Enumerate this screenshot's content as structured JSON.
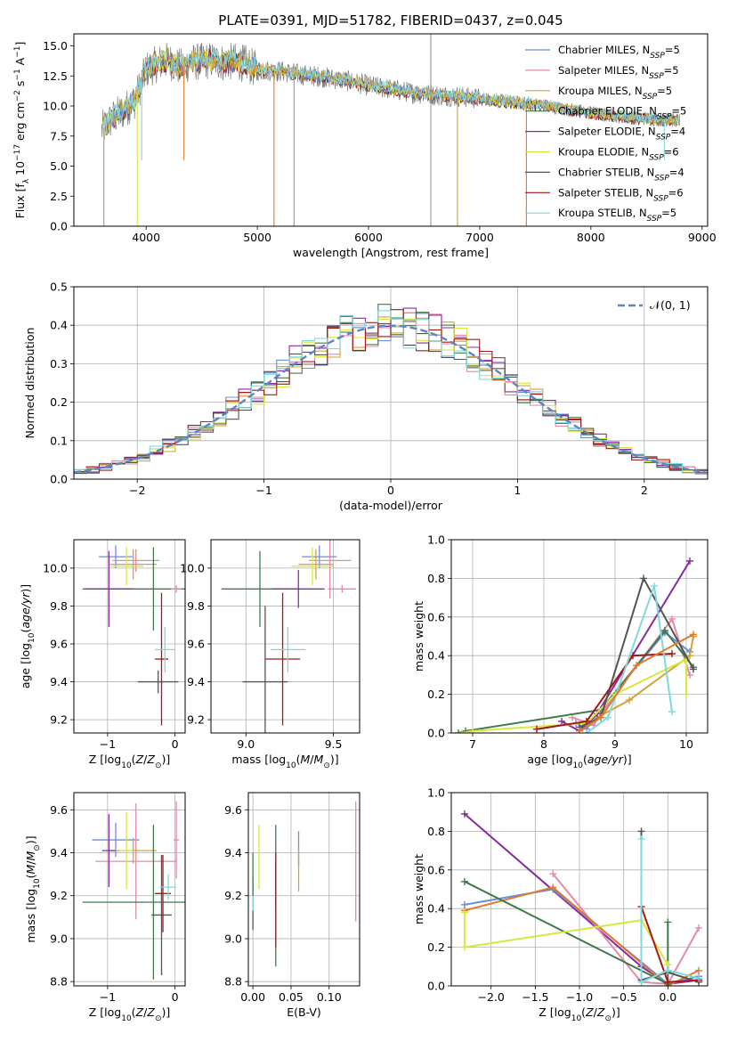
{
  "figure": {
    "title": "PLATE=0391, MJD=51782, FIBERID=0437, z=0.045"
  },
  "colors": {
    "chabrier_miles": "#6d8ddb",
    "salpeter_miles": "#e48aa8",
    "kroupa_miles": "#d8a232",
    "chabrier_elodie": "#3f7a4b",
    "salpeter_elodie": "#8a2ba0",
    "kroupa_elodie": "#d7e83a",
    "chabrier_stelib": "#555555",
    "salpeter_stelib": "#a51818",
    "kroupa_stelib": "#7ed9de",
    "normal_curve": "#5b86c6",
    "orange_extra": "#e07a2c",
    "grid": "#b0b0b0"
  },
  "chart_data": [
    {
      "id": "spectrum",
      "type": "line",
      "title": "PLATE=0391, MJD=51782, FIBERID=0437, z=0.045",
      "xlabel": "wavelength [Angstrom, rest frame]",
      "ylabel": "Flux [f_λ 10^-17 erg cm^-2 s^-1 A^-1]",
      "xlim": [
        3350,
        9050
      ],
      "ylim": [
        0,
        16
      ],
      "xticks": [
        4000,
        5000,
        6000,
        7000,
        8000,
        9000
      ],
      "yticks": [
        0.0,
        2.5,
        5.0,
        7.5,
        10.0,
        12.5,
        15.0
      ],
      "grid": false,
      "legend_position": "upper-right",
      "legend": [
        {
          "label": "Chabrier MILES, N_SSP=5",
          "color_key": "chabrier_miles"
        },
        {
          "label": "Salpeter MILES, N_SSP=5",
          "color_key": "salpeter_miles"
        },
        {
          "label": "Kroupa MILES, N_SSP=5",
          "color_key": "kroupa_miles"
        },
        {
          "label": "Chabrier ELODIE, N_SSP=5",
          "color_key": "chabrier_elodie"
        },
        {
          "label": "Salpeter ELODIE, N_SSP=4",
          "color_key": "salpeter_elodie"
        },
        {
          "label": "Kroupa ELODIE, N_SSP=6",
          "color_key": "kroupa_elodie"
        },
        {
          "label": "Chabrier STELIB, N_SSP=4",
          "color_key": "chabrier_stelib"
        },
        {
          "label": "Salpeter STELIB, N_SSP=6",
          "color_key": "salpeter_stelib"
        },
        {
          "label": "Kroupa STELIB, N_SSP=5",
          "color_key": "kroupa_stelib"
        }
      ],
      "data_curve": {
        "x": [
          3600,
          3700,
          3800,
          3900,
          4000,
          4100,
          4200,
          4300,
          4400,
          4500,
          4600,
          4700,
          4800,
          4900,
          5000,
          5200,
          5400,
          5600,
          5800,
          6000,
          6200,
          6400,
          6600,
          6800,
          7000,
          7200,
          7400,
          7600,
          7800,
          8000,
          8200,
          8400,
          8600,
          8800
        ],
        "y": [
          8.0,
          9.0,
          9.6,
          10.5,
          13.0,
          13.5,
          13.8,
          13.2,
          13.6,
          13.7,
          13.8,
          13.6,
          13.7,
          13.5,
          13.0,
          12.9,
          12.6,
          12.4,
          12.1,
          11.7,
          11.4,
          11.1,
          10.9,
          10.8,
          10.6,
          10.4,
          10.2,
          10.0,
          9.7,
          9.4,
          9.2,
          9.0,
          8.9,
          8.8
        ]
      },
      "drop_lines_x": [
        3620,
        3920,
        3960,
        4340,
        5150,
        5330,
        6560,
        6800,
        7420,
        8660
      ]
    },
    {
      "id": "residuals",
      "type": "line",
      "xlabel": "(data-model)/error",
      "ylabel": "Normed distribution",
      "xlim": [
        -2.5,
        2.5
      ],
      "ylim": [
        0,
        0.5
      ],
      "xticks": [
        -2,
        -1,
        0,
        1,
        2
      ],
      "yticks": [
        0.0,
        0.1,
        0.2,
        0.3,
        0.4,
        0.5
      ],
      "grid": true,
      "legend_position": "upper-right",
      "legend_label": "𝒩(0, 1)",
      "normal_mean": 0,
      "normal_sigma": 1
    },
    {
      "id": "z_vs_age",
      "type": "scatter",
      "xlabel": "Z [log10(Z/Z_⊙)]",
      "ylabel": "age [log10(age/yr)]",
      "xlim": [
        -1.5,
        0.15
      ],
      "ylim": [
        9.13,
        10.15
      ],
      "xticks": [
        -1,
        0
      ],
      "yticks": [
        9.2,
        9.4,
        9.6,
        9.8,
        10.0
      ],
      "grid": true,
      "points": [
        {
          "color_key": "chabrier_miles",
          "x": -0.88,
          "y": 10.06,
          "xerr": 0.25,
          "yerr": 0.06
        },
        {
          "color_key": "salpeter_miles",
          "x": -0.58,
          "y": 10.04,
          "xerr": 0.35,
          "yerr": 0.06
        },
        {
          "color_key": "kroupa_miles",
          "x": -0.62,
          "y": 10.02,
          "xerr": 0.35,
          "yerr": 0.08
        },
        {
          "color_key": "chabrier_elodie",
          "x": -0.32,
          "y": 9.89,
          "xerr": 1.05,
          "yerr": 0.22
        },
        {
          "color_key": "salpeter_elodie",
          "x": -0.98,
          "y": 9.89,
          "xerr": 0.35,
          "yerr": 0.2
        },
        {
          "color_key": "kroupa_elodie",
          "x": -0.72,
          "y": 10.01,
          "xerr": 0.25,
          "yerr": 0.1
        },
        {
          "color_key": "chabrier_stelib",
          "x": -0.25,
          "y": 9.4,
          "xerr": 0.3,
          "yerr": 0.06
        },
        {
          "color_key": "salpeter_stelib",
          "x": -0.2,
          "y": 9.52,
          "xerr": 0.1,
          "yerr": 0.35
        },
        {
          "color_key": "kroupa_stelib",
          "x": -0.15,
          "y": 9.57,
          "xerr": 0.15,
          "yerr": 0.12
        },
        {
          "color_key": "salpeter_miles",
          "x": 0.02,
          "y": 9.89,
          "xerr": 0.08,
          "yerr": 0.02
        }
      ]
    },
    {
      "id": "mass_vs_age",
      "type": "scatter",
      "xlabel": "mass [log10(M/M_⊙)]",
      "ylabel": "",
      "xlim": [
        8.8,
        9.65
      ],
      "ylim": [
        9.13,
        10.15
      ],
      "xticks": [
        9.0,
        9.5
      ],
      "yticks": [
        9.2,
        9.4,
        9.6,
        9.8,
        10.0
      ],
      "grid": true,
      "points": [
        {
          "color_key": "chabrier_miles",
          "x": 9.42,
          "y": 10.06,
          "xerr": 0.1,
          "yerr": 0.06
        },
        {
          "color_key": "salpeter_miles",
          "x": 9.48,
          "y": 10.04,
          "xerr": 0.12,
          "yerr": 0.2
        },
        {
          "color_key": "kroupa_miles",
          "x": 9.4,
          "y": 10.02,
          "xerr": 0.1,
          "yerr": 0.08
        },
        {
          "color_key": "chabrier_elodie",
          "x": 9.08,
          "y": 9.89,
          "xerr": 0.22,
          "yerr": 0.2
        },
        {
          "color_key": "salpeter_elodie",
          "x": 9.3,
          "y": 9.89,
          "xerr": 0.15,
          "yerr": 0.1
        },
        {
          "color_key": "kroupa_elodie",
          "x": 9.38,
          "y": 10.01,
          "xerr": 0.12,
          "yerr": 0.1
        },
        {
          "color_key": "chabrier_stelib",
          "x": 9.11,
          "y": 9.4,
          "xerr": 0.13,
          "yerr": 0.4
        },
        {
          "color_key": "salpeter_stelib",
          "x": 9.21,
          "y": 9.52,
          "xerr": 0.1,
          "yerr": 0.35
        },
        {
          "color_key": "kroupa_stelib",
          "x": 9.24,
          "y": 9.57,
          "xerr": 0.1,
          "yerr": 0.12
        },
        {
          "color_key": "salpeter_miles",
          "x": 9.55,
          "y": 9.89,
          "xerr": 0.08,
          "yerr": 0.02
        }
      ]
    },
    {
      "id": "age_vs_weight",
      "type": "line",
      "xlabel": "age [log10(age/yr)]",
      "ylabel": "mass weight",
      "xlim": [
        6.7,
        10.3
      ],
      "ylim": [
        0,
        1.0
      ],
      "xticks": [
        7,
        8,
        9,
        10
      ],
      "yticks": [
        0.0,
        0.2,
        0.4,
        0.6,
        0.8,
        1.0
      ],
      "grid": true,
      "series": [
        {
          "color_key": "chabrier_miles",
          "x": [
            8.45,
            8.6,
            8.75,
            9.7,
            10.05
          ],
          "y": [
            0.05,
            0.02,
            0.1,
            0.52,
            0.42
          ]
        },
        {
          "color_key": "salpeter_miles",
          "x": [
            8.4,
            8.7,
            8.8,
            9.8,
            10.05
          ],
          "y": [
            0.08,
            0.04,
            0.1,
            0.59,
            0.3
          ]
        },
        {
          "color_key": "kroupa_miles",
          "x": [
            8.55,
            8.75,
            9.2,
            10.05,
            10.1
          ],
          "y": [
            0.03,
            0.08,
            0.17,
            0.4,
            0.5
          ]
        },
        {
          "color_key": "chabrier_elodie",
          "x": [
            6.8,
            6.9,
            8.8,
            9.7,
            10.1
          ],
          "y": [
            0.0,
            0.01,
            0.12,
            0.53,
            0.34
          ]
        },
        {
          "color_key": "salpeter_elodie",
          "x": [
            8.25,
            8.5,
            8.75,
            10.05
          ],
          "y": [
            0.06,
            0.01,
            0.1,
            0.89
          ]
        },
        {
          "color_key": "kroupa_elodie",
          "x": [
            6.85,
            7.0,
            8.6,
            9.0,
            10.0,
            10.0
          ],
          "y": [
            0.0,
            0.01,
            0.05,
            0.2,
            0.38,
            0.2
          ]
        },
        {
          "color_key": "chabrier_stelib",
          "x": [
            8.5,
            8.8,
            9.4,
            10.1
          ],
          "y": [
            0.03,
            0.08,
            0.8,
            0.33
          ]
        },
        {
          "color_key": "salpeter_stelib",
          "x": [
            7.9,
            8.6,
            9.25,
            9.8
          ],
          "y": [
            0.02,
            0.06,
            0.4,
            0.41
          ]
        },
        {
          "color_key": "kroupa_stelib",
          "x": [
            8.6,
            8.9,
            9.55,
            9.8
          ],
          "y": [
            0.0,
            0.08,
            0.76,
            0.11
          ]
        },
        {
          "color_key": "orange_extra",
          "x": [
            8.5,
            8.8,
            9.3,
            10.1
          ],
          "y": [
            0.01,
            0.08,
            0.35,
            0.51
          ]
        }
      ]
    },
    {
      "id": "z_vs_mass",
      "type": "scatter",
      "xlabel": "Z [log10(Z/Z_⊙)]",
      "ylabel": "mass [log10(M/M_⊙)]",
      "xlim": [
        -1.5,
        0.15
      ],
      "ylim": [
        8.78,
        9.68
      ],
      "xticks": [
        -1,
        0
      ],
      "yticks": [
        8.8,
        9.0,
        9.2,
        9.4,
        9.6
      ],
      "grid": true,
      "points": [
        {
          "color_key": "chabrier_miles",
          "x": -0.88,
          "y": 9.46,
          "xerr": 0.35,
          "yerr": 0.08
        },
        {
          "color_key": "salpeter_miles",
          "x": -0.58,
          "y": 9.36,
          "xerr": 0.6,
          "yerr": 0.27
        },
        {
          "color_key": "kroupa_miles",
          "x": -0.62,
          "y": 9.41,
          "xerr": 0.35,
          "yerr": 0.06
        },
        {
          "color_key": "chabrier_elodie",
          "x": -0.32,
          "y": 9.17,
          "xerr": 1.05,
          "yerr": 0.36
        },
        {
          "color_key": "salpeter_elodie",
          "x": -0.98,
          "y": 9.41,
          "xerr": 0.1,
          "yerr": 0.17
        },
        {
          "color_key": "kroupa_elodie",
          "x": -0.72,
          "y": 9.41,
          "xerr": 0.1,
          "yerr": 0.18
        },
        {
          "color_key": "chabrier_stelib",
          "x": -0.2,
          "y": 9.11,
          "xerr": 0.15,
          "yerr": 0.28
        },
        {
          "color_key": "salpeter_stelib",
          "x": -0.18,
          "y": 9.21,
          "xerr": 0.12,
          "yerr": 0.18
        },
        {
          "color_key": "kroupa_stelib",
          "x": -0.1,
          "y": 9.24,
          "xerr": 0.12,
          "yerr": 0.06
        },
        {
          "color_key": "salpeter_miles",
          "x": 0.02,
          "y": 9.46,
          "xerr": 0.04,
          "yerr": 0.18
        }
      ]
    },
    {
      "id": "ebv_vs_mass",
      "type": "scatter",
      "xlabel": "E(B-V)",
      "ylabel": "",
      "xlim": [
        -0.006,
        0.14
      ],
      "ylim": [
        8.78,
        9.68
      ],
      "xticks": [
        0.0,
        0.05,
        0.1
      ],
      "yticks": [
        8.8,
        9.0,
        9.2,
        9.4,
        9.6
      ],
      "grid": true,
      "points": [
        {
          "color_key": "chabrier_miles",
          "x": 0.06,
          "y": 9.42,
          "yerr": 0.08
        },
        {
          "color_key": "salpeter_miles",
          "x": 0.135,
          "y": 9.36,
          "yerr": 0.28
        },
        {
          "color_key": "kroupa_miles",
          "x": 0.06,
          "y": 9.32,
          "yerr": 0.1
        },
        {
          "color_key": "chabrier_elodie",
          "x": 0.03,
          "y": 9.2,
          "yerr": 0.33
        },
        {
          "color_key": "salpeter_elodie",
          "x": 0.03,
          "y": 9.25,
          "yerr": 0.12
        },
        {
          "color_key": "kroupa_elodie",
          "x": 0.008,
          "y": 9.38,
          "yerr": 0.15
        },
        {
          "color_key": "chabrier_stelib",
          "x": 0.0,
          "y": 9.16,
          "yerr": 0.12
        },
        {
          "color_key": "salpeter_stelib",
          "x": 0.03,
          "y": 9.18,
          "yerr": 0.22
        },
        {
          "color_key": "kroupa_stelib",
          "x": 0.0,
          "y": 9.25,
          "yerr": 0.12
        },
        {
          "color_key": "chabrier_elodie",
          "x": 0.0,
          "y": 9.3,
          "yerr": 0.1
        }
      ]
    },
    {
      "id": "z_vs_weight",
      "type": "line",
      "xlabel": "Z [log10(Z/Z_⊙)]",
      "ylabel": "mass weight",
      "xlim": [
        -2.45,
        0.45
      ],
      "ylim": [
        0,
        1.0
      ],
      "xticks": [
        -2.0,
        -1.5,
        -1.0,
        -0.5,
        0.0
      ],
      "yticks": [
        0.0,
        0.2,
        0.4,
        0.6,
        0.8,
        1.0
      ],
      "grid": true,
      "series": [
        {
          "color_key": "salpeter_elodie",
          "x": [
            -2.3,
            -0.3,
            0.0,
            0.35
          ],
          "y": [
            0.89,
            0.1,
            0.01,
            0.03
          ]
        },
        {
          "color_key": "salpeter_miles",
          "x": [
            -1.3,
            -0.3,
            0.0,
            0.35
          ],
          "y": [
            0.58,
            0.02,
            0.01,
            0.3
          ]
        },
        {
          "color_key": "chabrier_miles",
          "x": [
            -2.3,
            -1.3,
            0.0,
            0.35
          ],
          "y": [
            0.42,
            0.5,
            0.01,
            0.05
          ]
        },
        {
          "color_key": "orange_extra",
          "x": [
            -2.3,
            -1.3,
            0.0,
            0.35
          ],
          "y": [
            0.39,
            0.51,
            0.0,
            0.08
          ]
        },
        {
          "color_key": "chabrier_elodie",
          "x": [
            -2.3,
            0.0,
            0.0
          ],
          "y": [
            0.54,
            0.01,
            0.33
          ]
        },
        {
          "color_key": "kroupa_elodie",
          "x": [
            -2.3,
            -2.3,
            -0.3,
            0.0
          ],
          "y": [
            0.38,
            0.2,
            0.34,
            0.11
          ]
        },
        {
          "color_key": "chabrier_stelib",
          "x": [
            -0.3,
            -0.3,
            0.0,
            0.35
          ],
          "y": [
            0.8,
            0.03,
            0.07,
            0.02
          ]
        },
        {
          "color_key": "salpeter_stelib",
          "x": [
            -0.3,
            0.0,
            0.35
          ],
          "y": [
            0.41,
            0.02,
            0.03
          ]
        },
        {
          "color_key": "kroupa_stelib",
          "x": [
            -0.3,
            -0.3,
            0.0,
            0.35
          ],
          "y": [
            0.76,
            0.02,
            0.08,
            0.04
          ]
        }
      ]
    }
  ]
}
